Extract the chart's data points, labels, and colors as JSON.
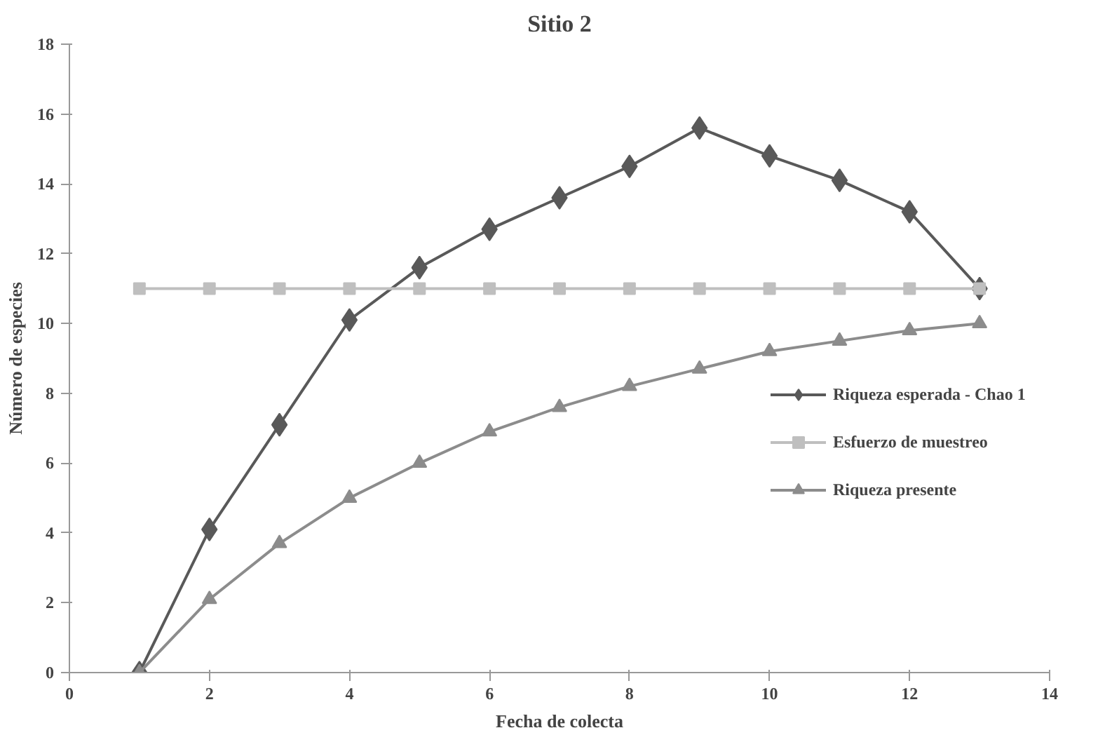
{
  "chart_data": {
    "type": "line",
    "title": "Sitio 2",
    "xlabel": "Fecha de colecta",
    "ylabel": "Número de especies",
    "x": [
      1,
      2,
      3,
      4,
      5,
      6,
      7,
      8,
      9,
      10,
      11,
      12,
      13
    ],
    "xlim": [
      0,
      14
    ],
    "xticks": [
      0,
      2,
      4,
      6,
      8,
      10,
      12,
      14
    ],
    "ylim": [
      0,
      18
    ],
    "yticks": [
      0,
      2,
      4,
      6,
      8,
      10,
      12,
      14,
      16,
      18
    ],
    "grid": false,
    "legend": "right",
    "series": [
      {
        "name": "Riqueza esperada - Chao 1",
        "color": "#595959",
        "marker": "diamond",
        "values": [
          0,
          4.1,
          7.1,
          10.1,
          11.6,
          12.7,
          13.6,
          14.5,
          15.6,
          14.8,
          14.1,
          13.2,
          11.0
        ]
      },
      {
        "name": "Esfuerzo de muestreo",
        "color": "#bfbfbf",
        "marker": "square",
        "values": [
          11,
          11,
          11,
          11,
          11,
          11,
          11,
          11,
          11,
          11,
          11,
          11,
          11
        ]
      },
      {
        "name": "Riqueza presente",
        "color": "#8c8c8c",
        "marker": "triangle",
        "values": [
          0,
          2.1,
          3.7,
          5.0,
          6.0,
          6.9,
          7.6,
          8.2,
          8.7,
          9.2,
          9.5,
          9.8,
          10.0
        ]
      }
    ]
  }
}
